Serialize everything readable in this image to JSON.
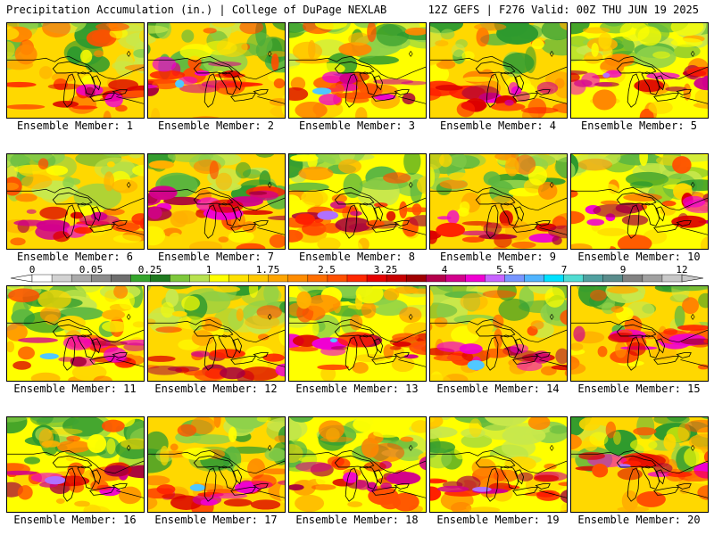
{
  "header": {
    "left": "Precipitation Accumulation (in.) | College of DuPage NEXLAB",
    "right": "12Z GEFS | F276 Valid: 00Z THU JUN 19 2025"
  },
  "colorbar": {
    "tick_labels": [
      "0",
      "0.05",
      "0.25",
      "1",
      "1.75",
      "2.5",
      "3.25",
      "4",
      "5.5",
      "7",
      "9",
      "12"
    ],
    "colors": [
      "#ffffff",
      "#d2d2d2",
      "#aaaaaa",
      "#8c8c8c",
      "#6e6e6e",
      "#35a52d",
      "#1f7a1f",
      "#7ec83c",
      "#b8e24f",
      "#ffff00",
      "#ffe100",
      "#ffc800",
      "#ffa500",
      "#ff8c00",
      "#ff6e00",
      "#ff5000",
      "#ff2800",
      "#e60000",
      "#c80000",
      "#a00000",
      "#b4004b",
      "#d2008c",
      "#f000d2",
      "#c864ff",
      "#7896ff",
      "#50b4ff",
      "#00e1ff",
      "#50dcd2",
      "#50a0a0",
      "#5a8c8c",
      "#828282",
      "#a0a0a0",
      "#c8c8c8"
    ]
  },
  "panels": [
    {
      "label": "Ensemble Member: 1"
    },
    {
      "label": "Ensemble Member: 2"
    },
    {
      "label": "Ensemble Member: 3"
    },
    {
      "label": "Ensemble Member: 4"
    },
    {
      "label": "Ensemble Member: 5"
    },
    {
      "label": "Ensemble Member: 6"
    },
    {
      "label": "Ensemble Member: 7"
    },
    {
      "label": "Ensemble Member: 8"
    },
    {
      "label": "Ensemble Member: 9"
    },
    {
      "label": "Ensemble Member: 10"
    },
    {
      "label": "Ensemble Member: 11"
    },
    {
      "label": "Ensemble Member: 12"
    },
    {
      "label": "Ensemble Member: 13"
    },
    {
      "label": "Ensemble Member: 14"
    },
    {
      "label": "Ensemble Member: 15"
    },
    {
      "label": "Ensemble Member: 16"
    },
    {
      "label": "Ensemble Member: 17"
    },
    {
      "label": "Ensemble Member: 18"
    },
    {
      "label": "Ensemble Member: 19"
    },
    {
      "label": "Ensemble Member: 20"
    }
  ]
}
